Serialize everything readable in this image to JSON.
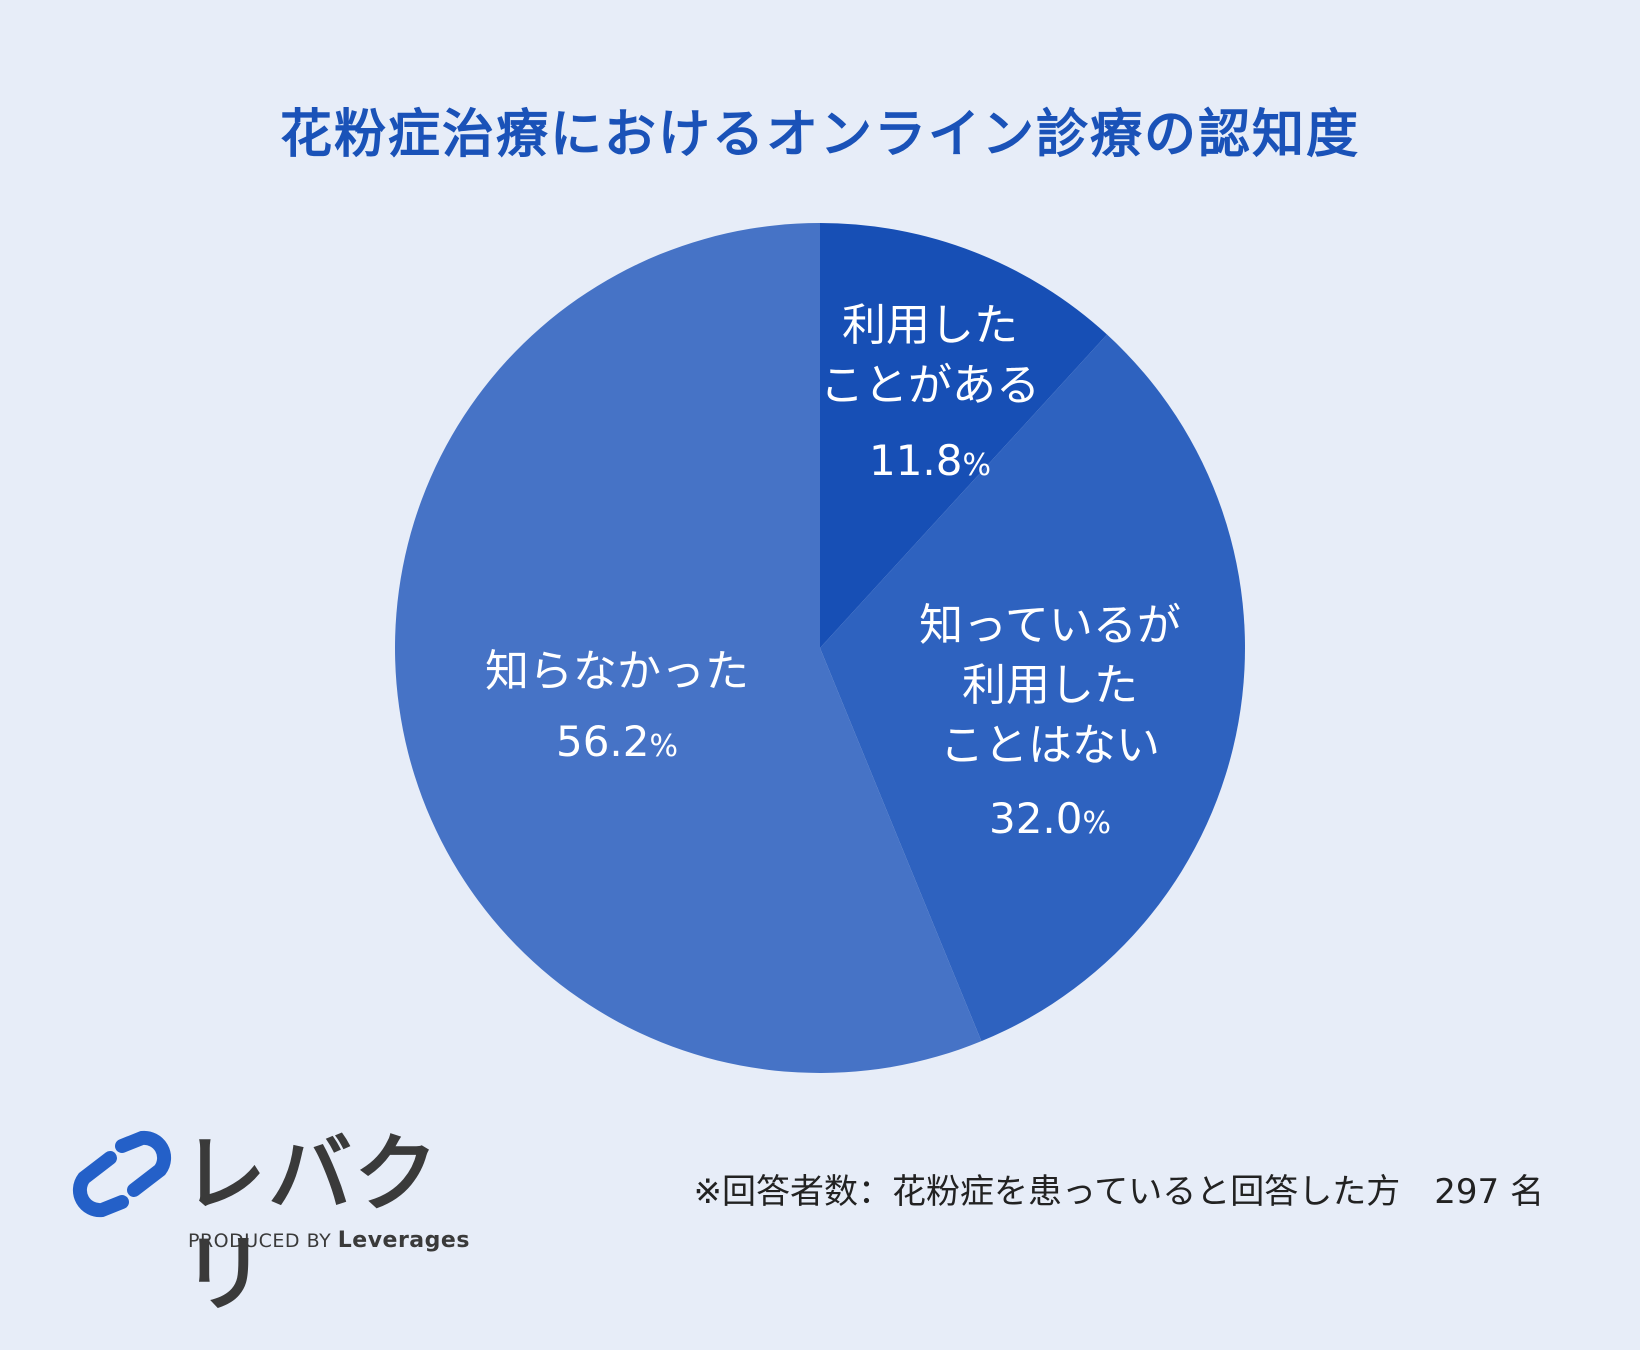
{
  "title": "花粉症治療におけるオンライン診療の認知度",
  "chart_data": {
    "type": "pie",
    "title": "花粉症治療におけるオンライン診療の認知度",
    "slices": [
      {
        "label": "利用した\nことがある",
        "value": 11.8,
        "value_text": "11.8",
        "color": "#174fb5"
      },
      {
        "label": "知っているが\n利用した\nことはない",
        "value": 32.0,
        "value_text": "32.0",
        "color": "#2e62bf"
      },
      {
        "label": "知らなかった",
        "value": 56.2,
        "value_text": "56.2",
        "color": "#4673c6"
      }
    ],
    "unit": "%",
    "start": "12 o'clock, clockwise"
  },
  "footnote": "※回答者数：花粉症を患っていると回答した方　297 名",
  "logo": {
    "name": "レバクリ",
    "produced_by": "PRODUCED BY",
    "company": "Leverages",
    "icon": "pill-link-icon",
    "color": "#2460c8"
  }
}
